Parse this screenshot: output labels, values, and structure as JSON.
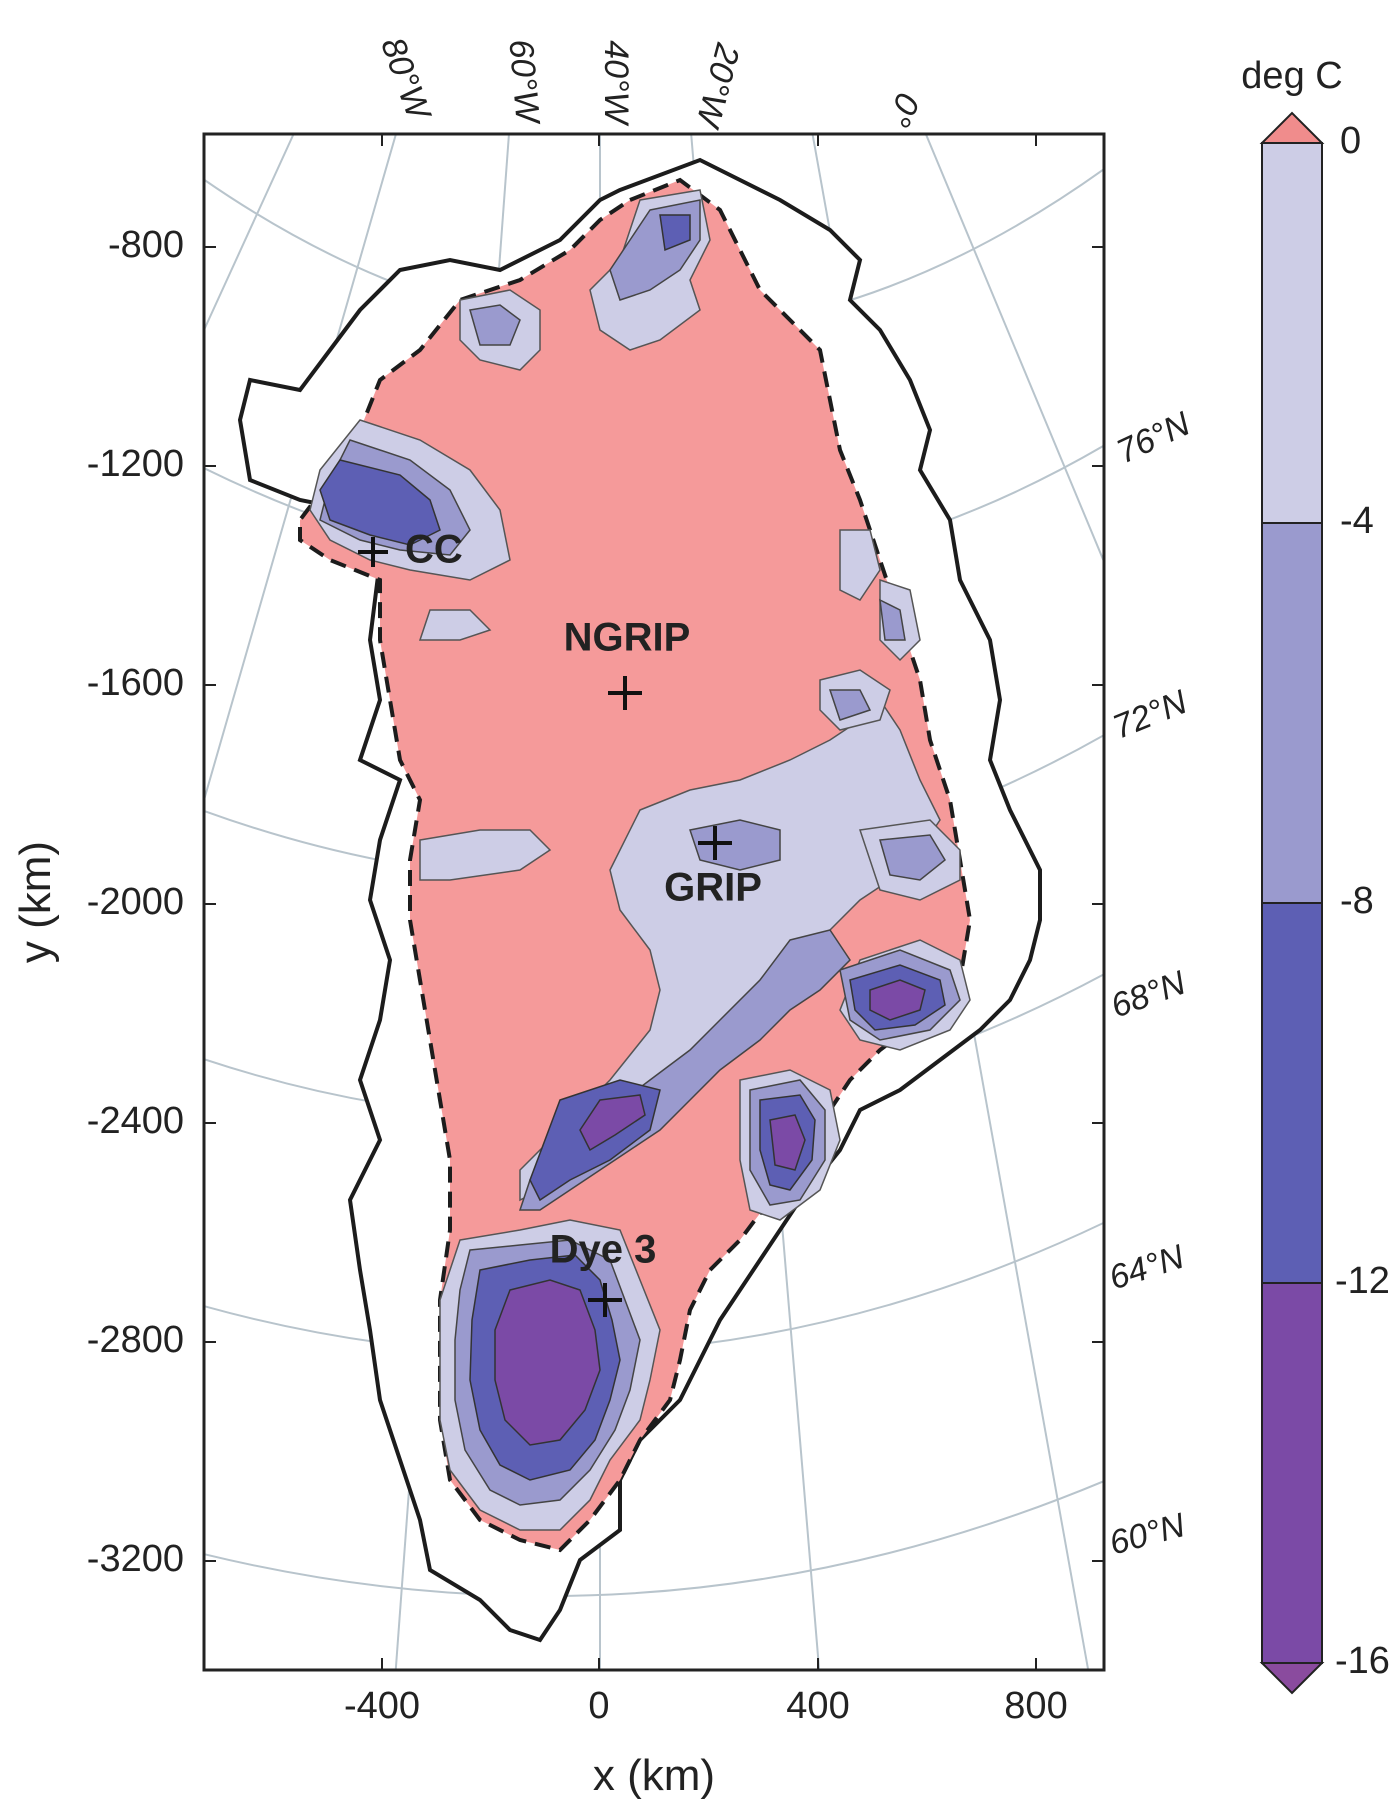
{
  "map": {
    "x_axis": {
      "label": "x (km)",
      "ticks": [
        {
          "value": -400,
          "label": "-400"
        },
        {
          "value": 0,
          "label": "0"
        },
        {
          "value": 400,
          "label": "400"
        },
        {
          "value": 800,
          "label": "800"
        }
      ]
    },
    "y_axis": {
      "label": "y (km)",
      "ticks": [
        {
          "value": -800,
          "label": "-800"
        },
        {
          "value": -1200,
          "label": "-1200"
        },
        {
          "value": -1600,
          "label": "-1600"
        },
        {
          "value": -2000,
          "label": "-2000"
        },
        {
          "value": -2400,
          "label": "-2400"
        },
        {
          "value": -2800,
          "label": "-2800"
        },
        {
          "value": -3200,
          "label": "-3200"
        }
      ]
    },
    "longitude_labels": [
      "80°W",
      "60°W",
      "40°W",
      "20°W",
      "0°"
    ],
    "latitude_labels": [
      "76°N",
      "72°N",
      "68°N",
      "64°N",
      "60°N"
    ],
    "sites": [
      {
        "name": "CC"
      },
      {
        "name": "NGRIP"
      },
      {
        "name": "GRIP"
      },
      {
        "name": "Dye 3"
      }
    ]
  },
  "colorbar": {
    "title": "deg C",
    "ticks": [
      "0",
      "-4",
      "-8",
      "-12",
      "-16"
    ],
    "bands": [
      {
        "from": -4,
        "to": 0,
        "color": "#cdcde6"
      },
      {
        "from": -8,
        "to": -4,
        "color": "#9a9ace"
      },
      {
        "from": -12,
        "to": -8,
        "color": "#5d5fb4"
      },
      {
        "from": -16,
        "to": -12,
        "color": "#7b4aa6"
      }
    ],
    "over_color": "#f08c8c",
    "under_color": "#8a4b9e"
  },
  "colors": {
    "warm": "#f59a9a",
    "band_0_4": "#cdcde6",
    "band_4_8": "#9a9ace",
    "band_8_12": "#5d5fb4",
    "band_12_16": "#7b4aa6"
  }
}
